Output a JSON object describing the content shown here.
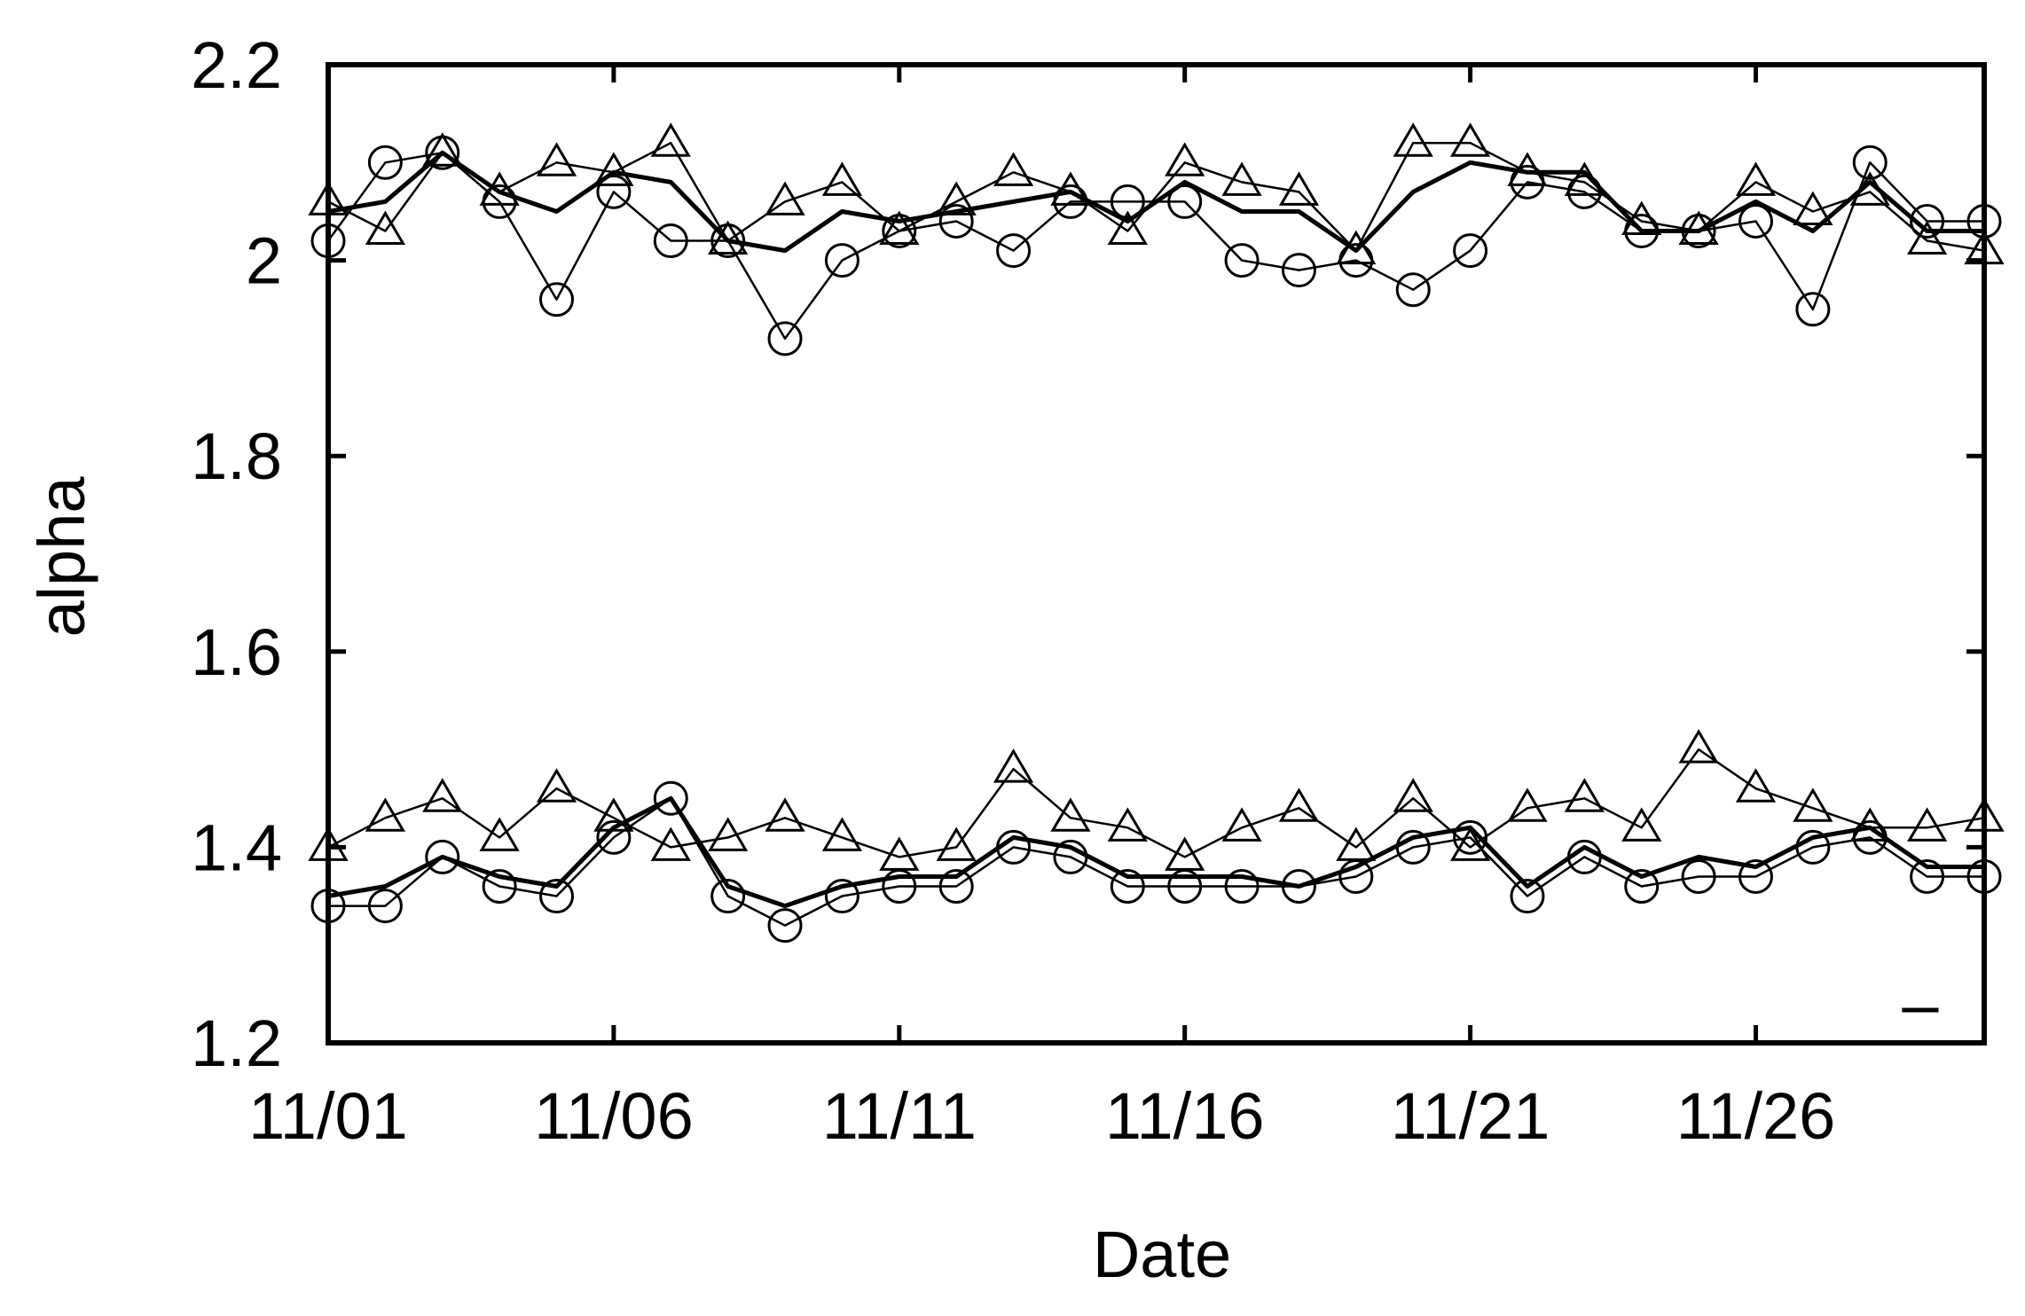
{
  "chart_data": {
    "type": "line",
    "xlabel": "Date",
    "ylabel": "alpha",
    "x": [
      "11/01",
      "11/02",
      "11/03",
      "11/04",
      "11/05",
      "11/06",
      "11/07",
      "11/08",
      "11/09",
      "11/10",
      "11/11",
      "11/12",
      "11/13",
      "11/14",
      "11/15",
      "11/16",
      "11/17",
      "11/18",
      "11/19",
      "11/20",
      "11/21",
      "11/22",
      "11/23",
      "11/24",
      "11/25",
      "11/26",
      "11/27",
      "11/28",
      "11/29",
      "11/30"
    ],
    "xticks": [
      "11/01",
      "11/06",
      "11/11",
      "11/16",
      "11/21",
      "11/26"
    ],
    "yticks": [
      "1.2",
      "1.4",
      "1.6",
      "1.8",
      "2",
      "2.2"
    ],
    "ylim": [
      1.2,
      2.2
    ],
    "grid": false,
    "legend_label": "–",
    "series": [
      {
        "marker": "circle",
        "line": "thin",
        "values": [
          2.02,
          2.1,
          2.11,
          2.06,
          1.96,
          2.07,
          2.02,
          2.02,
          1.92,
          2.0,
          2.03,
          2.04,
          2.01,
          2.06,
          2.06,
          2.06,
          2.0,
          1.99,
          2.0,
          1.97,
          2.01,
          2.08,
          2.07,
          2.03,
          2.03,
          2.04,
          1.95,
          2.1,
          2.04,
          2.04
        ]
      },
      {
        "marker": "triangle",
        "line": "thin",
        "values": [
          2.06,
          2.03,
          2.11,
          2.07,
          2.1,
          2.09,
          2.12,
          2.02,
          2.06,
          2.08,
          2.03,
          2.06,
          2.09,
          2.07,
          2.03,
          2.1,
          2.08,
          2.07,
          2.01,
          2.12,
          2.12,
          2.09,
          2.08,
          2.04,
          2.03,
          2.08,
          2.05,
          2.07,
          2.02,
          2.01
        ]
      },
      {
        "marker": "none",
        "line": "thick",
        "values": [
          2.05,
          2.06,
          2.11,
          2.07,
          2.05,
          2.09,
          2.08,
          2.02,
          2.01,
          2.05,
          2.04,
          2.05,
          2.06,
          2.07,
          2.04,
          2.08,
          2.05,
          2.05,
          2.01,
          2.07,
          2.1,
          2.09,
          2.09,
          2.03,
          2.03,
          2.06,
          2.03,
          2.08,
          2.03,
          2.03
        ]
      },
      {
        "marker": "circle",
        "line": "thin",
        "values": [
          1.34,
          1.34,
          1.39,
          1.36,
          1.35,
          1.41,
          1.45,
          1.35,
          1.32,
          1.35,
          1.36,
          1.36,
          1.4,
          1.39,
          1.36,
          1.36,
          1.36,
          1.36,
          1.37,
          1.4,
          1.41,
          1.35,
          1.39,
          1.36,
          1.37,
          1.37,
          1.4,
          1.41,
          1.37,
          1.37
        ]
      },
      {
        "marker": "triangle",
        "line": "thin",
        "values": [
          1.4,
          1.43,
          1.45,
          1.41,
          1.46,
          1.43,
          1.4,
          1.41,
          1.43,
          1.41,
          1.39,
          1.4,
          1.48,
          1.43,
          1.42,
          1.39,
          1.42,
          1.44,
          1.4,
          1.45,
          1.4,
          1.44,
          1.45,
          1.42,
          1.5,
          1.46,
          1.44,
          1.42,
          1.42,
          1.43
        ]
      },
      {
        "marker": "none",
        "line": "thick",
        "values": [
          1.35,
          1.36,
          1.39,
          1.37,
          1.36,
          1.42,
          1.45,
          1.36,
          1.34,
          1.36,
          1.37,
          1.37,
          1.41,
          1.4,
          1.37,
          1.37,
          1.37,
          1.36,
          1.38,
          1.41,
          1.42,
          1.36,
          1.4,
          1.37,
          1.39,
          1.38,
          1.41,
          1.42,
          1.38,
          1.38
        ]
      }
    ]
  }
}
